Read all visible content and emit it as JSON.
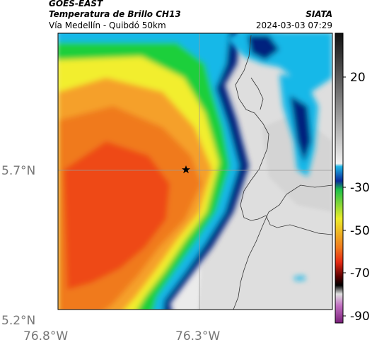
{
  "header": {
    "satellite": "GOES-EAST",
    "product": "Temperatura de Brillo CH13",
    "route": "Vía Medellín - Quibdó 50km",
    "source": "SIATA",
    "datetime": "2024-03-03 07:29"
  },
  "axes": {
    "lat_ticks": [
      "5.7°N",
      "5.2°N"
    ],
    "lon_ticks": [
      "76.8°W",
      "76.3°W"
    ]
  },
  "colorbar": {
    "tick_labels": [
      "20",
      "-30",
      "-50",
      "-70",
      "-90"
    ]
  },
  "marker": {
    "icon": "star-icon"
  },
  "colors": {
    "frame": "#000000",
    "grid": "#9a9a9a",
    "deep_blue": "#00207e",
    "cyan": "#14b8e8",
    "green": "#1ecf3a",
    "yellow": "#f2ee2e",
    "orange": "#f07a1e",
    "red_orange": "#ee4a18",
    "land_gray": "#e9e9e9"
  }
}
